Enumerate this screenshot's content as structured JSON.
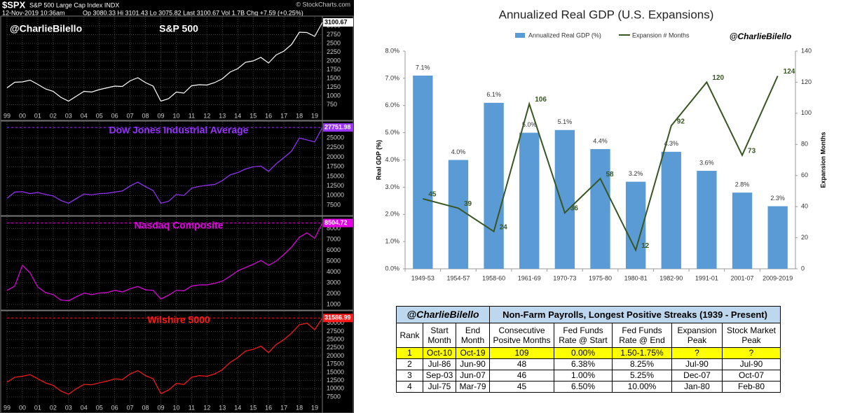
{
  "header": {
    "symbol": "$SPX",
    "name": "S&P 500 Large Cap Index INDX",
    "source": "© StockCharts.com",
    "date": "12-Nov-2019 10:36am",
    "quote": "Op 3080.33 Hi 3101.43 Lo 3075.82 Last 3100.67 Vol 1.7B Chg +7.59 (+0.25%)"
  },
  "chart_data": [
    {
      "type": "line",
      "handle": "@CharlieBilello",
      "title": "S&P 500",
      "color": "#ffffff",
      "categories": [
        "99",
        null,
        "00",
        null,
        "01",
        null,
        "02",
        null,
        "03",
        null,
        "04",
        null,
        "05",
        null,
        "06",
        null,
        "07",
        null,
        "08",
        null,
        "09",
        null,
        "10",
        null,
        "11",
        null,
        "12",
        null,
        "13",
        null,
        "14",
        null,
        "15",
        null,
        "16",
        null,
        "17",
        null,
        "18",
        null,
        "19",
        null
      ],
      "values": [
        1230,
        1390,
        1400,
        1450,
        1330,
        1200,
        1130,
        960,
        850,
        990,
        1130,
        1110,
        1180,
        1230,
        1280,
        1270,
        1430,
        1520,
        1380,
        1280,
        850,
        920,
        1110,
        1080,
        1290,
        1320,
        1310,
        1380,
        1490,
        1680,
        1780,
        1960,
        2000,
        2100,
        1940,
        2170,
        2280,
        2470,
        2820,
        2810,
        2700,
        3100.67
      ],
      "ylim": [
        600,
        3200
      ],
      "yticks": [
        750,
        1000,
        1250,
        1500,
        1750,
        2000,
        2250,
        2500,
        2750,
        3000
      ]
    },
    {
      "type": "line",
      "title": "Dow Jones Industrial Average",
      "color": "#9933ff",
      "values": [
        9300,
        10900,
        11000,
        10500,
        10800,
        10300,
        9900,
        8700,
        8000,
        9200,
        10400,
        10200,
        10500,
        10600,
        10900,
        11200,
        12500,
        13500,
        12300,
        11300,
        8000,
        8500,
        10300,
        10000,
        11900,
        12400,
        12700,
        12900,
        13900,
        15400,
        16000,
        16900,
        17500,
        17700,
        16300,
        18300,
        19900,
        21600,
        25000,
        24500,
        24000,
        27751.98
      ],
      "ylim": [
        5500,
        28500
      ],
      "yticks": [
        7500,
        10000,
        12500,
        15000,
        17500,
        20000,
        22500,
        25000
      ]
    },
    {
      "type": "line",
      "title": "Nasdaq Composite",
      "color": "#e600e6",
      "values": [
        2300,
        2700,
        4600,
        3900,
        2600,
        2100,
        1900,
        1400,
        1350,
        1700,
        2050,
        1900,
        2050,
        2100,
        2300,
        2150,
        2450,
        2650,
        2350,
        2300,
        1500,
        1850,
        2300,
        2250,
        2700,
        2800,
        2800,
        2950,
        3150,
        3600,
        4100,
        4400,
        4700,
        5050,
        4600,
        5000,
        5600,
        6300,
        7200,
        7600,
        7100,
        8504.72
      ],
      "ylim": [
        800,
        8800
      ],
      "yticks": [
        1000,
        2000,
        3000,
        4000,
        5000,
        6000,
        7000,
        8000
      ]
    },
    {
      "type": "line",
      "title": "Wilshire 5000",
      "color": "#ff1a1a",
      "categories": [
        "99",
        null,
        "00",
        null,
        "01",
        null,
        "02",
        null,
        "03",
        null,
        "04",
        null,
        "05",
        null,
        "06",
        null,
        "07",
        null,
        "08",
        null,
        "09",
        null,
        "10",
        null,
        "11",
        null,
        "12",
        null,
        "13",
        null,
        "14",
        null,
        "15",
        null,
        "16",
        null,
        "17",
        null,
        "18",
        null,
        "19",
        null
      ],
      "values": [
        12000,
        13500,
        13800,
        14300,
        13000,
        11800,
        11000,
        9300,
        8300,
        10000,
        11300,
        11200,
        11800,
        12300,
        13000,
        12800,
        14500,
        15500,
        14000,
        13000,
        8500,
        9600,
        11600,
        11300,
        13500,
        14000,
        13800,
        14500,
        15800,
        18000,
        19500,
        21500,
        22000,
        23000,
        21000,
        23500,
        25000,
        27000,
        29500,
        30000,
        28000,
        31586.99
      ],
      "ylim": [
        6000,
        32500
      ],
      "yticks": [
        7500,
        10000,
        12500,
        15000,
        17500,
        20000,
        22500,
        25000,
        27500,
        30000
      ]
    },
    {
      "type": "combo",
      "title": "Annualized Real GDP (U.S. Expansions)",
      "handle": "@CharlieBilello",
      "y_label": "Real GDP (%)",
      "y2_label": "Expansion Months",
      "categories": [
        "1949-53",
        "1954-57",
        "1958-60",
        "1961-69",
        "1970-73",
        "1975-80",
        "1980-81",
        "1982-90",
        "1991-01",
        "2001-07",
        "2009-2019"
      ],
      "series": [
        {
          "name": "Annualized Real GDP (%)",
          "type": "bar",
          "color": "#5b9bd5",
          "values": [
            7.1,
            4.0,
            6.1,
            5.0,
            5.1,
            4.4,
            3.2,
            4.3,
            3.6,
            2.8,
            2.3
          ],
          "value_labels": [
            "7.1%",
            "4.0%",
            "6.1%",
            "5.0%",
            "5.1%",
            "4.4%",
            "3.2%",
            "4.3%",
            "3.6%",
            "2.8%",
            "2.3%"
          ]
        },
        {
          "name": "Expansion # Months",
          "type": "line",
          "color": "#375623",
          "axis": "y2",
          "values": [
            45,
            39,
            24,
            106,
            36,
            58,
            12,
            92,
            120,
            73,
            124
          ]
        }
      ],
      "ylim": [
        0,
        8
      ],
      "yticks": [
        {
          "value": 0,
          "label": "0.0%"
        },
        {
          "value": 1,
          "label": "1.0%"
        },
        {
          "value": 2,
          "label": "2.0%"
        },
        {
          "value": 3,
          "label": "3.0%"
        },
        {
          "value": 4,
          "label": "4.0%"
        },
        {
          "value": 5,
          "label": "5.0%"
        },
        {
          "value": 6,
          "label": "6.0%"
        },
        {
          "value": 7,
          "label": "7.0%"
        },
        {
          "value": 8,
          "label": "8.0%"
        }
      ],
      "y2lim": [
        0,
        140
      ],
      "y2ticks": [
        0,
        20,
        40,
        60,
        80,
        100,
        120,
        140
      ]
    }
  ],
  "table": {
    "handle": "@CharlieBilello",
    "title": "Non-Farm Payrolls, Longest Positive Streaks (1939 - Present)",
    "columns": [
      "Rank",
      "Start Month",
      "End Month",
      "Consecutive Positve Months",
      "Fed Funds Rate @ Start",
      "Fed Funds Rate @ End",
      "Expansion Peak",
      "Stock Market Peak"
    ],
    "rows": [
      [
        1,
        "Oct-10",
        "Oct-19",
        109,
        "0.00%",
        "1.50-1.75%",
        "?",
        "?"
      ],
      [
        2,
        "Jul-86",
        "Jun-90",
        48,
        "6.38%",
        "8.25%",
        "Jul-90",
        "Jul-90"
      ],
      [
        3,
        "Sep-03",
        "Jun-07",
        46,
        "1.00%",
        "5.25%",
        "Dec-07",
        "Oct-07"
      ],
      [
        4,
        "Jul-75",
        "Mar-79",
        45,
        "6.50%",
        "10.00%",
        "Jan-80",
        "Feb-80"
      ]
    ]
  }
}
